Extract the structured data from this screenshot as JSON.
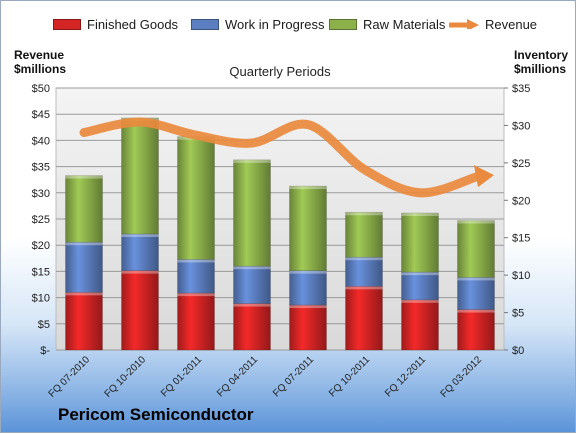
{
  "chart_data": {
    "type": "bar",
    "stacked": true,
    "subtitle": "Quarterly Periods",
    "categories": [
      "FQ 07-2010",
      "FQ 10-2010",
      "FQ 01-2011",
      "FQ 04-2011",
      "FQ 07-2011",
      "FQ 10-2011",
      "FQ 12-2011",
      "FQ 03-2012"
    ],
    "series": [
      {
        "name": "Finished Goods",
        "axis": "right",
        "color": "#d42424",
        "values": [
          7.7,
          10.6,
          7.6,
          6.2,
          6.0,
          8.5,
          6.7,
          5.4
        ]
      },
      {
        "name": "Work in Progress",
        "axis": "right",
        "color": "#5b7ec0",
        "values": [
          6.7,
          4.9,
          4.5,
          5.0,
          4.6,
          3.9,
          3.7,
          4.3
        ]
      },
      {
        "name": "Raw Materials",
        "axis": "right",
        "color": "#8cb04a",
        "values": [
          8.9,
          15.5,
          16.4,
          14.2,
          11.3,
          6.0,
          7.9,
          7.6
        ]
      }
    ],
    "line_series": {
      "name": "Revenue",
      "axis": "left",
      "color": "#e98a3e",
      "values": [
        41.5,
        43.5,
        41.0,
        39.5,
        43.0,
        34.5,
        30.0,
        33.0
      ]
    },
    "left_axis": {
      "title_line1": "Revenue",
      "title_line2": "$millions",
      "min": 0,
      "max": 50,
      "ticks": [
        "$-",
        "$5",
        "$10",
        "$15",
        "$20",
        "$25",
        "$30",
        "$35",
        "$40",
        "$45",
        "$50"
      ]
    },
    "right_axis": {
      "title_line1": "Inventory",
      "title_line2": "$millions",
      "min": 0,
      "max": 35,
      "ticks": [
        "$0",
        "$5",
        "$10",
        "$15",
        "$20",
        "$25",
        "$30",
        "$35"
      ]
    },
    "grid": true,
    "legend_position": "top"
  },
  "brand": "Pericom Semiconductor"
}
